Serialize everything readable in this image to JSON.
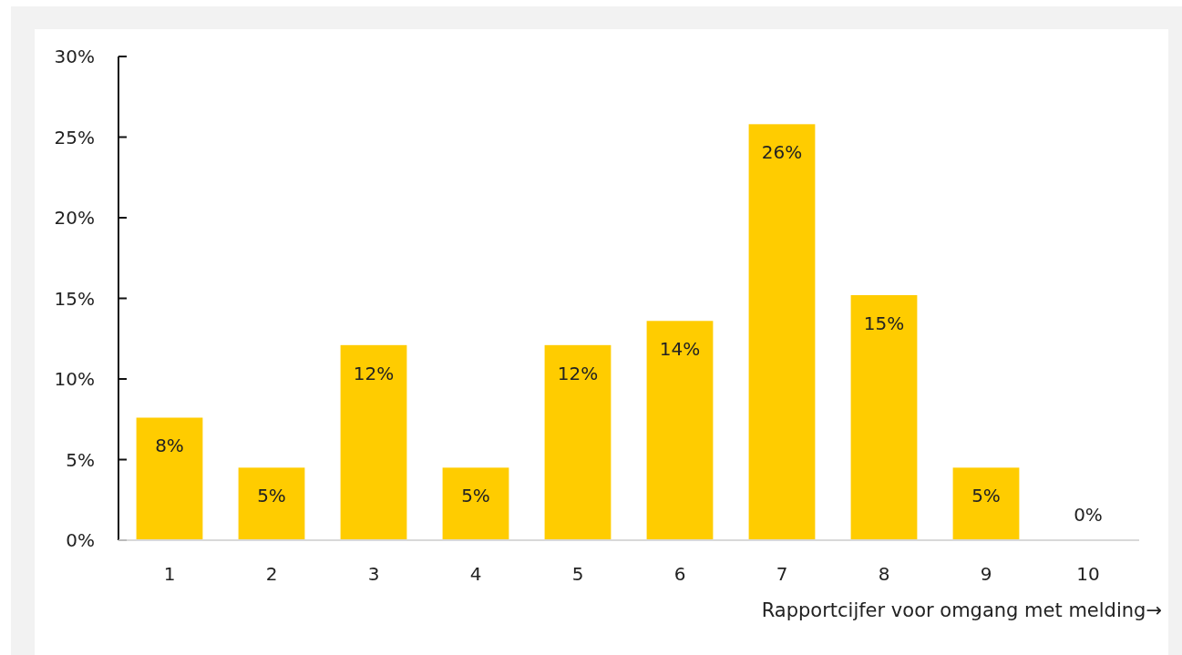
{
  "chart_data": {
    "type": "bar",
    "xlabel": "Rapportcijfer voor omgang met melding→",
    "categories": [
      "1",
      "2",
      "3",
      "4",
      "5",
      "6",
      "7",
      "8",
      "9",
      "10"
    ],
    "values": [
      7.6,
      4.5,
      12.1,
      4.5,
      12.1,
      13.6,
      25.8,
      15.2,
      4.5,
      0
    ],
    "value_labels": [
      "8%",
      "5%",
      "12%",
      "5%",
      "12%",
      "14%",
      "26%",
      "15%",
      "5%",
      "0%"
    ],
    "color": "#ffcc00",
    "ylim": [
      0,
      30
    ],
    "yticks": [
      {
        "value": 0,
        "label": "0%"
      },
      {
        "value": 5,
        "label": "5%"
      },
      {
        "value": 10,
        "label": "10%"
      },
      {
        "value": 15,
        "label": "15%"
      },
      {
        "value": 20,
        "label": "20%"
      },
      {
        "value": 25,
        "label": "25%"
      },
      {
        "value": 30,
        "label": "30%"
      }
    ],
    "grid": false
  }
}
